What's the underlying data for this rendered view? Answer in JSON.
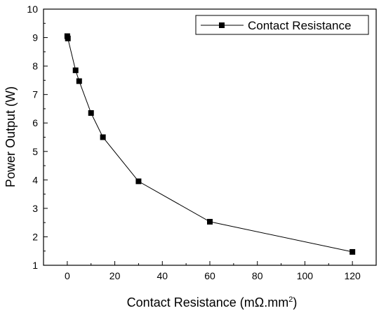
{
  "chart_data": {
    "type": "line",
    "title": "",
    "xlabel": "Contact Resistance (mΩ.mm",
    "xlabel_superscript": "2",
    "xlabel_close": ")",
    "ylabel": "Power Output (W)",
    "xlim": [
      -10,
      130
    ],
    "ylim": [
      1,
      10
    ],
    "x_ticks": [
      0,
      20,
      40,
      60,
      80,
      100,
      120
    ],
    "y_ticks": [
      1,
      2,
      3,
      4,
      5,
      6,
      7,
      8,
      9,
      10
    ],
    "x_minor_step": 10,
    "y_minor_step": 0.5,
    "grid": false,
    "legend_position": "top-right",
    "series": [
      {
        "name": "Contact Resistance",
        "marker": "square",
        "color": "#000000",
        "x": [
          0,
          0.25,
          3.5,
          5,
          10,
          15,
          30,
          60,
          120
        ],
        "y": [
          9.05,
          8.97,
          7.85,
          7.47,
          6.35,
          5.5,
          3.95,
          2.53,
          1.47
        ]
      }
    ]
  }
}
